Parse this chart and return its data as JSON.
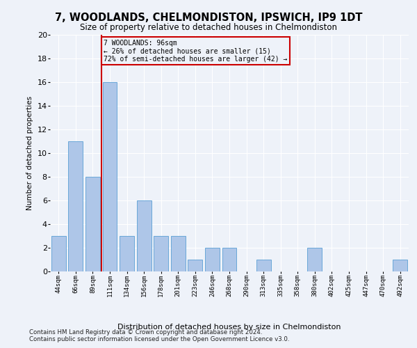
{
  "title": "7, WOODLANDS, CHELMONDISTON, IPSWICH, IP9 1DT",
  "subtitle": "Size of property relative to detached houses in Chelmondiston",
  "xlabel": "Distribution of detached houses by size in Chelmondiston",
  "ylabel": "Number of detached properties",
  "footer_line1": "Contains HM Land Registry data © Crown copyright and database right 2024.",
  "footer_line2": "Contains public sector information licensed under the Open Government Licence v3.0.",
  "bar_labels": [
    "44sqm",
    "66sqm",
    "89sqm",
    "111sqm",
    "134sqm",
    "156sqm",
    "178sqm",
    "201sqm",
    "223sqm",
    "246sqm",
    "268sqm",
    "290sqm",
    "313sqm",
    "335sqm",
    "358sqm",
    "380sqm",
    "402sqm",
    "425sqm",
    "447sqm",
    "470sqm",
    "492sqm"
  ],
  "bar_values": [
    3,
    11,
    8,
    16,
    3,
    6,
    3,
    3,
    1,
    2,
    2,
    0,
    1,
    0,
    0,
    2,
    0,
    0,
    0,
    0,
    1
  ],
  "bar_color": "#aec6e8",
  "bar_edge_color": "#5a9fd4",
  "ylim": [
    0,
    20
  ],
  "yticks": [
    0,
    2,
    4,
    6,
    8,
    10,
    12,
    14,
    16,
    18,
    20
  ],
  "vline_x": 2.5,
  "vline_color": "#cc0000",
  "annotation_text": "7 WOODLANDS: 96sqm\n← 26% of detached houses are smaller (15)\n72% of semi-detached houses are larger (42) →",
  "annotation_box_color": "#cc0000",
  "background_color": "#eef2f9",
  "grid_color": "#ffffff"
}
